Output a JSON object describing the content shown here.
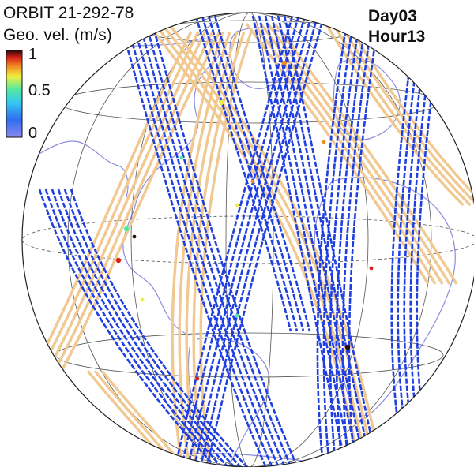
{
  "title": "ORBIT 21-292-78",
  "colorbar": {
    "label": "Geo. vel. (m/s)",
    "ticks": [
      "1",
      "0.5",
      "0"
    ],
    "colors": [
      "#2a2ab8",
      "#2f6df0",
      "#36c8f0",
      "#52e8a0",
      "#f0f040",
      "#f08a20",
      "#d82018",
      "#2a0a08"
    ]
  },
  "time": {
    "day": "Day03",
    "hour": "Hour13"
  },
  "colors": {
    "inactive_track": "#f0c890",
    "active_track": "#1f3fe0",
    "coastline": "#8c8ce0",
    "graticule": "#555555"
  }
}
